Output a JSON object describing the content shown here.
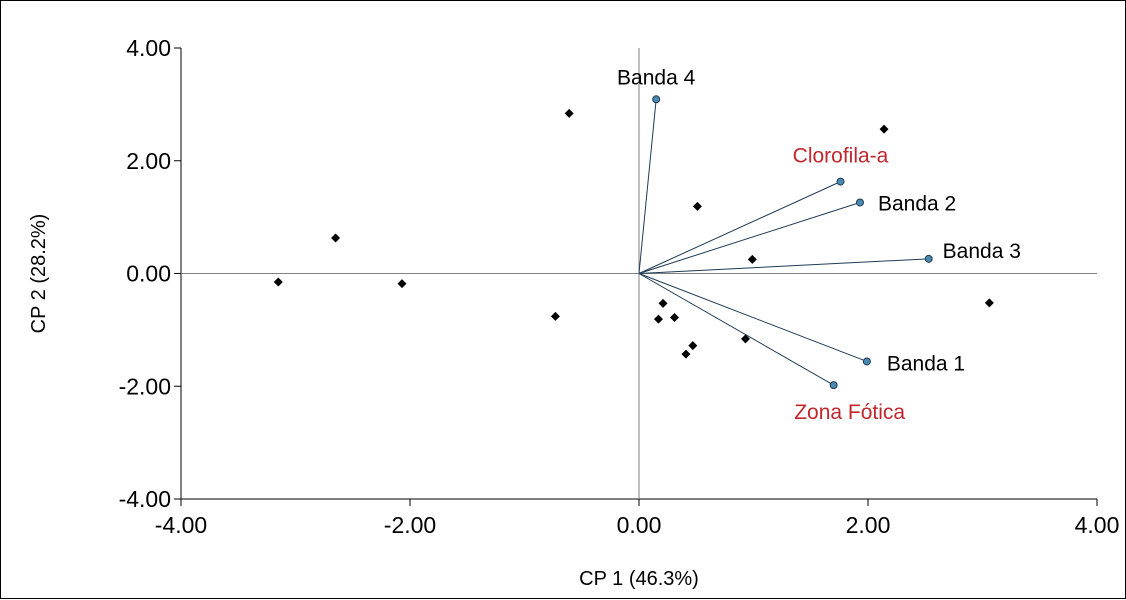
{
  "chart_data": {
    "type": "scatter",
    "xlabel": "CP 1 (46.3%)",
    "ylabel": "CP 2 (28.2%)",
    "xlim": [
      -4,
      4
    ],
    "ylim": [
      -4,
      4
    ],
    "x_ticks": [
      "-4.00",
      "-2.00",
      "0.00",
      "2.00",
      "4.00"
    ],
    "y_ticks": [
      "4.00",
      "2.00",
      "0.00",
      "-2.00",
      "-4.00"
    ],
    "zero_lines": true,
    "grid": false,
    "points": [
      {
        "x": -3.15,
        "y": -0.15
      },
      {
        "x": -2.65,
        "y": 0.63
      },
      {
        "x": -2.07,
        "y": -0.18
      },
      {
        "x": -0.73,
        "y": -0.76
      },
      {
        "x": -0.61,
        "y": 2.84
      },
      {
        "x": 0.17,
        "y": -0.81
      },
      {
        "x": 0.21,
        "y": -0.53
      },
      {
        "x": 0.31,
        "y": -0.78
      },
      {
        "x": 0.41,
        "y": -1.43
      },
      {
        "x": 0.47,
        "y": -1.28
      },
      {
        "x": 0.51,
        "y": 1.19
      },
      {
        "x": 0.93,
        "y": -1.16
      },
      {
        "x": 0.99,
        "y": 0.25
      },
      {
        "x": 2.14,
        "y": 2.56
      },
      {
        "x": 3.06,
        "y": -0.52
      }
    ],
    "vectors": [
      {
        "label": "Banda 4",
        "x": 0.15,
        "y": 3.09,
        "color": "#000000"
      },
      {
        "label": "Clorofila-a",
        "x": 1.76,
        "y": 1.63,
        "color": "#c1272d"
      },
      {
        "label": "Banda 2",
        "x": 1.93,
        "y": 1.26,
        "color": "#000000"
      },
      {
        "label": "Banda 3",
        "x": 2.53,
        "y": 0.26,
        "color": "#000000"
      },
      {
        "label": "Banda 1",
        "x": 1.99,
        "y": -1.56,
        "color": "#000000"
      },
      {
        "label": "Zona Fótica",
        "x": 1.7,
        "y": -1.98,
        "color": "#c1272d"
      }
    ],
    "point_color": "#000000",
    "vector_endpoint_color": "#4a89b0"
  }
}
